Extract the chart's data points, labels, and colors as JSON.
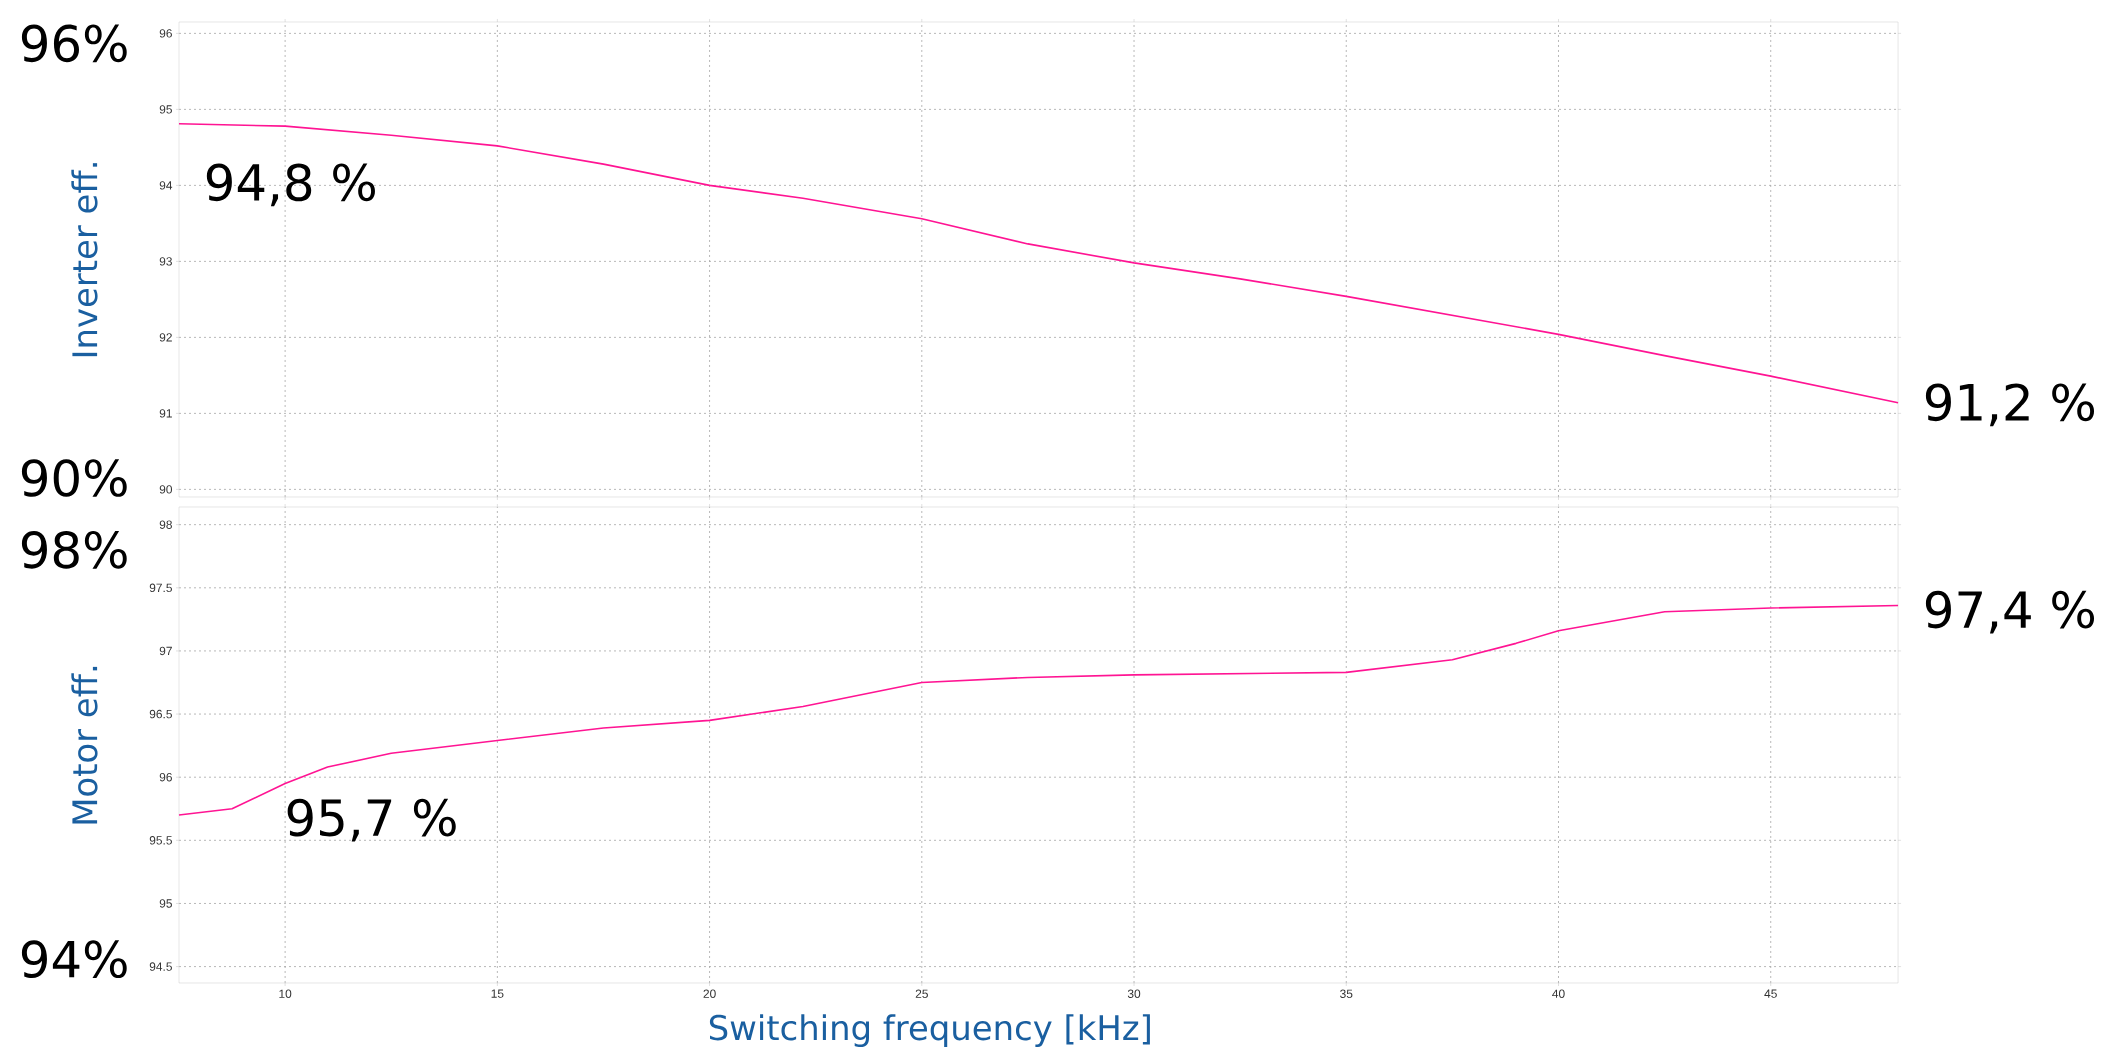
{
  "chart_data": [
    {
      "type": "line",
      "ylabel": "Inverter eff.",
      "x": [
        7.5,
        10,
        12.5,
        15,
        17.5,
        20,
        22.2,
        25,
        27.5,
        30,
        32.5,
        35,
        37.5,
        40,
        42.5,
        45,
        48
      ],
      "series": [
        {
          "color": "#ff1493",
          "values": [
            94.81,
            94.78,
            94.66,
            94.52,
            94.28,
            94.0,
            93.83,
            93.56,
            93.23,
            92.98,
            92.77,
            92.54,
            92.29,
            92.04,
            91.76,
            91.49,
            91.14
          ]
        }
      ],
      "xlim": [
        7.5,
        48
      ],
      "ylim": [
        89.9,
        96.15
      ],
      "xticks": [
        10,
        15,
        20,
        25,
        30,
        35,
        40,
        45
      ],
      "yticks": [
        90,
        91,
        92,
        93,
        94,
        95,
        96
      ],
      "tick_labels": "y",
      "grid": true,
      "annotations": [
        "96%",
        "90%",
        "94,8 %",
        "91,2 %"
      ]
    },
    {
      "type": "line",
      "xlabel": "Switching frequency [kHz]",
      "ylabel": "Motor eff.",
      "x": [
        7.5,
        8.75,
        10,
        11,
        12.5,
        15,
        17.5,
        20,
        22.2,
        25,
        27.5,
        30,
        35,
        37.5,
        39,
        40,
        42.5,
        45,
        48
      ],
      "series": [
        {
          "color": "#ff1493",
          "values": [
            95.7,
            95.75,
            95.95,
            96.08,
            96.19,
            96.29,
            96.39,
            96.45,
            96.56,
            96.75,
            96.79,
            96.81,
            96.83,
            96.93,
            97.06,
            97.16,
            97.31,
            97.34,
            97.36
          ]
        }
      ],
      "xlim": [
        7.5,
        48
      ],
      "ylim": [
        94.37,
        98.14
      ],
      "xticks": [
        10,
        15,
        20,
        25,
        30,
        35,
        40,
        45
      ],
      "yticks": [
        94.5,
        95,
        95.5,
        96,
        96.5,
        97,
        97.5,
        98
      ],
      "grid": true,
      "annotations": [
        "98%",
        "94%",
        "95,7 %",
        "97,4 %"
      ]
    }
  ]
}
